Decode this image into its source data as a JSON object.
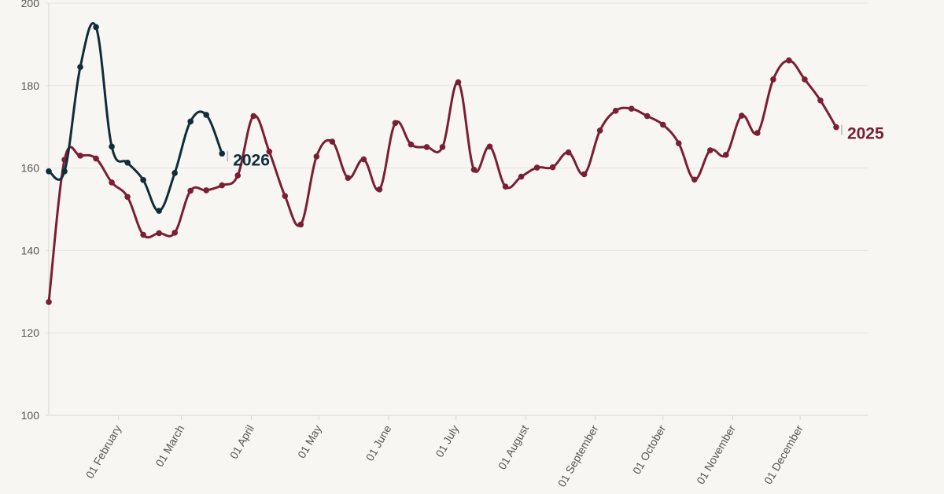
{
  "colors": {
    "background": "#f8f6f2",
    "grid": "#e7e4de",
    "axis": "#d9d6d0",
    "tick_text": "#555555",
    "series_2025": "#7a1f33",
    "series_2026": "#0f2d3b"
  },
  "chart_data": {
    "type": "line",
    "title": "",
    "xlabel": "",
    "ylabel": "",
    "x_unit": "day of year",
    "xlim": [
      1,
      365
    ],
    "ylim": [
      100,
      200
    ],
    "y_ticks": [
      100,
      120,
      140,
      160,
      180,
      200
    ],
    "x_tick_labels": [
      {
        "day": 32,
        "label": "01 February"
      },
      {
        "day": 60,
        "label": "01 March"
      },
      {
        "day": 91,
        "label": "01 April"
      },
      {
        "day": 121,
        "label": "01 May"
      },
      {
        "day": 152,
        "label": "01 June"
      },
      {
        "day": 182,
        "label": "01 July"
      },
      {
        "day": 213,
        "label": "01 August"
      },
      {
        "day": 244,
        "label": "01 September"
      },
      {
        "day": 274,
        "label": "01 October"
      },
      {
        "day": 305,
        "label": "01 November"
      },
      {
        "day": 335,
        "label": "01 December"
      }
    ],
    "grid": true,
    "legend": "inline labels at series ends",
    "series": [
      {
        "name": "2025",
        "color": "#7a1f33",
        "points": [
          [
            1,
            127.5
          ],
          [
            8,
            162.0
          ],
          [
            15,
            163.0
          ],
          [
            22,
            162.3
          ],
          [
            29,
            156.5
          ],
          [
            36,
            153.0
          ],
          [
            43,
            143.8
          ],
          [
            50,
            144.2
          ],
          [
            57,
            144.3
          ],
          [
            64,
            154.5
          ],
          [
            71,
            154.6
          ],
          [
            78,
            155.8
          ],
          [
            85,
            158.2
          ],
          [
            92,
            172.6
          ],
          [
            99,
            164.0
          ],
          [
            106,
            153.2
          ],
          [
            113,
            146.3
          ],
          [
            120,
            162.8
          ],
          [
            127,
            166.4
          ],
          [
            134,
            157.6
          ],
          [
            141,
            162.1
          ],
          [
            148,
            154.8
          ],
          [
            155,
            170.9
          ],
          [
            162,
            165.7
          ],
          [
            169,
            165.1
          ],
          [
            176,
            165.1
          ],
          [
            183,
            180.8
          ],
          [
            190,
            159.6
          ],
          [
            197,
            165.2
          ],
          [
            204,
            155.5
          ],
          [
            211,
            157.9
          ],
          [
            218,
            160.1
          ],
          [
            225,
            160.2
          ],
          [
            232,
            163.8
          ],
          [
            239,
            158.5
          ],
          [
            246,
            169.1
          ],
          [
            253,
            173.9
          ],
          [
            260,
            174.4
          ],
          [
            267,
            172.6
          ],
          [
            274,
            170.5
          ],
          [
            281,
            166.0
          ],
          [
            288,
            157.2
          ],
          [
            295,
            164.3
          ],
          [
            302,
            163.2
          ],
          [
            309,
            172.7
          ],
          [
            316,
            168.5
          ],
          [
            323,
            181.5
          ],
          [
            330,
            186.1
          ],
          [
            337,
            181.5
          ],
          [
            344,
            176.4
          ],
          [
            351,
            169.9
          ]
        ]
      },
      {
        "name": "2026",
        "color": "#0f2d3b",
        "points": [
          [
            1,
            159.2
          ],
          [
            8,
            159.2
          ],
          [
            15,
            184.5
          ],
          [
            22,
            194.2
          ],
          [
            29,
            165.2
          ],
          [
            36,
            161.3
          ],
          [
            43,
            157.1
          ],
          [
            50,
            149.6
          ],
          [
            57,
            158.8
          ],
          [
            64,
            171.3
          ],
          [
            71,
            172.9
          ],
          [
            78,
            163.5
          ]
        ]
      }
    ]
  }
}
